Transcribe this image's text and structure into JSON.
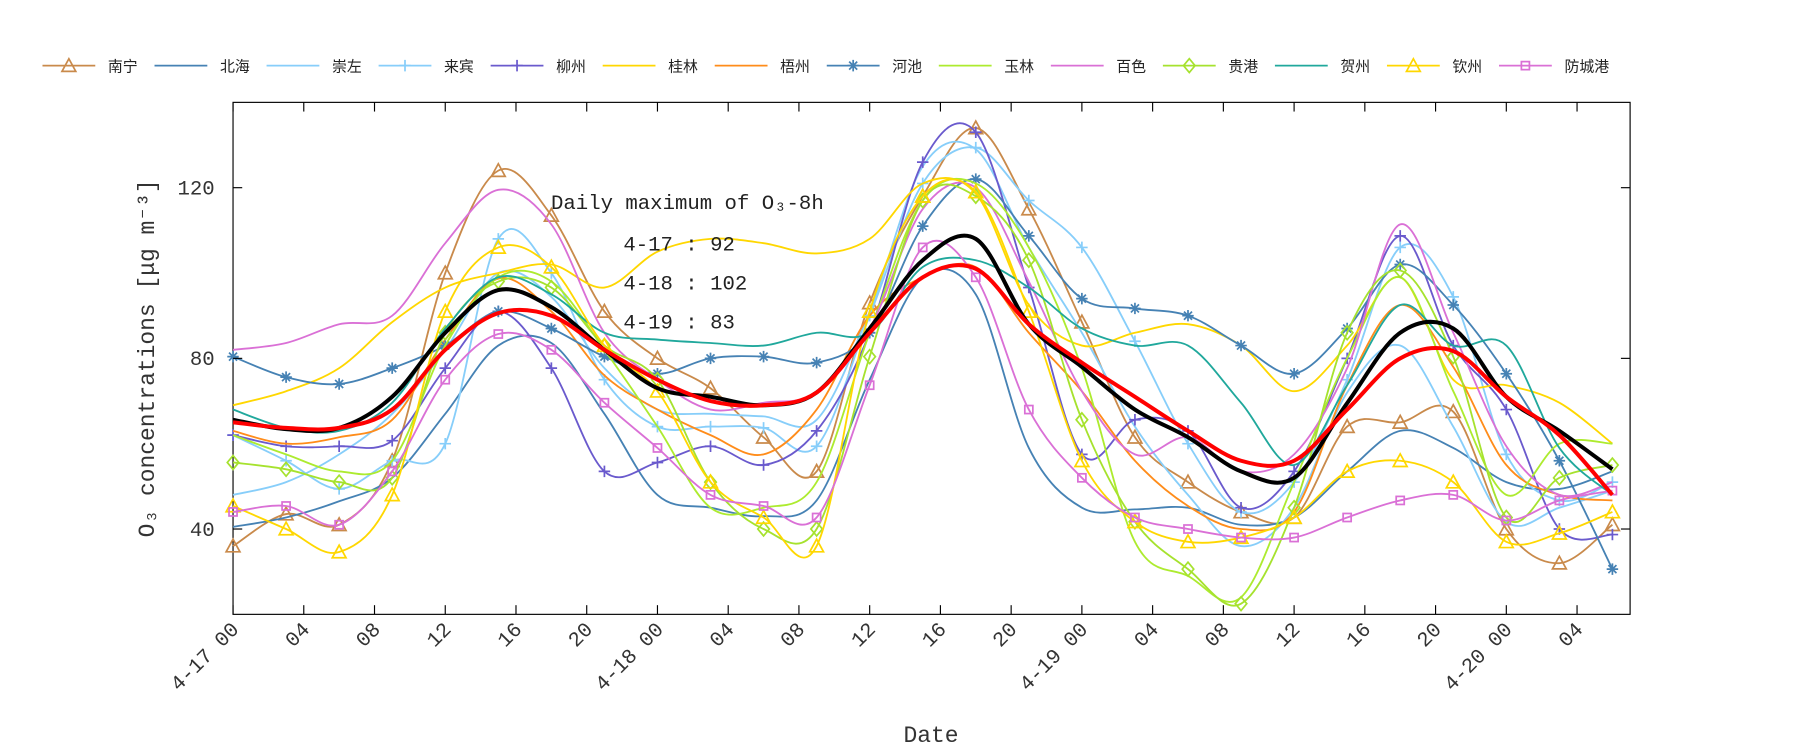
{
  "chart_data": {
    "type": "line",
    "title": "",
    "xlabel": "Date",
    "ylabel": "O₃ concentrations [μg m⁻³]",
    "xlim_hours_from_4-17_00": [
      0,
      79
    ],
    "ylim": [
      20,
      140
    ],
    "yticks": [
      40,
      80,
      120
    ],
    "xtick_labels": [
      "4-17 00",
      "04",
      "08",
      "12",
      "16",
      "20",
      "4-18 00",
      "04",
      "08",
      "12",
      "16",
      "20",
      "4-19 00",
      "04",
      "08",
      "12",
      "16",
      "20",
      "4-20 00",
      "04"
    ],
    "grid": false,
    "legend_position": "top",
    "x_time": [
      "4-17 00",
      "4-17 03",
      "4-17 06",
      "4-17 09",
      "4-17 12",
      "4-17 15",
      "4-17 18",
      "4-17 21",
      "4-18 00",
      "4-18 03",
      "4-18 06",
      "4-18 09",
      "4-18 12",
      "4-18 15",
      "4-18 18",
      "4-18 21",
      "4-19 00",
      "4-19 03",
      "4-19 06",
      "4-19 09",
      "4-19 12",
      "4-19 15",
      "4-19 18",
      "4-19 21",
      "4-20 00",
      "4-20 03",
      "4-20 06"
    ],
    "annotation": {
      "title": "Daily maximum of O₃-8h",
      "lines": [
        "4-17 : 92",
        "4-18 : 102",
        "4-19 : 83"
      ]
    },
    "series": [
      {
        "name": "南宁",
        "color": "#c98a4b",
        "marker": "triangle",
        "values": [
          36,
          43.5,
          41,
          56,
          100,
          124,
          113.5,
          91,
          80,
          73,
          61.5,
          53.5,
          93,
          118,
          134,
          115,
          88.5,
          61.5,
          51,
          44,
          42.7,
          64,
          65,
          67.5,
          40,
          32,
          41
        ]
      },
      {
        "name": "北海",
        "color": "#4682b4",
        "marker": "none",
        "values": [
          40.5,
          42.7,
          46.5,
          52,
          67,
          83,
          83.6,
          67,
          48,
          45,
          43,
          46.7,
          75,
          99,
          95,
          59,
          45,
          44.6,
          45,
          41,
          42.7,
          53.5,
          63,
          59,
          51,
          49.4,
          53.5
        ]
      },
      {
        "name": "崇左",
        "color": "#87cefa",
        "marker": "none",
        "values": [
          48,
          51,
          57.5,
          67,
          82,
          100,
          94.4,
          77.7,
          68,
          67,
          66.4,
          65.6,
          91,
          125,
          129,
          106,
          86,
          64,
          48,
          36,
          45,
          72,
          83,
          64,
          41.7,
          45,
          49
        ]
      },
      {
        "name": "来宾",
        "color": "#87cefa",
        "marker": "plus",
        "values": [
          62,
          56,
          49.4,
          56,
          60,
          108,
          100,
          75,
          64,
          64,
          63.7,
          59.4,
          90,
          121,
          129.4,
          117,
          106,
          84,
          60,
          44,
          51,
          75,
          106,
          94.4,
          57.5,
          46.7,
          51
        ]
      },
      {
        "name": "柳州",
        "color": "#6a5acd",
        "marker": "plus",
        "values": [
          62,
          59.4,
          59.4,
          60.7,
          77.7,
          91,
          77.7,
          53.5,
          55.6,
          59.4,
          55,
          63,
          86,
          126,
          133,
          96.6,
          57.5,
          65.6,
          63,
          45,
          53.5,
          80,
          108.7,
          83,
          68,
          40,
          38.7
        ]
      },
      {
        "name": "桂林",
        "color": "#ffd700",
        "marker": "none",
        "values": [
          69,
          72.3,
          77.7,
          88.5,
          96.6,
          100,
          102,
          96.6,
          105,
          108,
          107,
          104.6,
          108,
          121,
          118.6,
          92.5,
          83,
          86,
          88,
          83,
          72.3,
          83,
          99,
          75,
          73.7,
          69.6,
          60
        ]
      },
      {
        "name": "梧州",
        "color": "#ff8c1a",
        "marker": "none",
        "values": [
          63,
          60,
          61.5,
          65.6,
          84.4,
          98.7,
          91,
          76,
          68,
          62,
          57.5,
          68,
          90,
          99,
          101.4,
          86,
          72.3,
          56,
          45.4,
          40,
          44,
          73.7,
          92.5,
          78,
          55,
          48,
          46.7
        ]
      },
      {
        "name": "河池",
        "color": "#4682b4",
        "marker": "star",
        "values": [
          80.4,
          75.6,
          74,
          77.7,
          83,
          91,
          87,
          80.4,
          76.4,
          80,
          80.4,
          79,
          86,
          111,
          122,
          108.7,
          94,
          91.7,
          90,
          83,
          76.4,
          87,
          102,
          92.5,
          76.4,
          56,
          30.6
        ]
      },
      {
        "name": "玉林",
        "color": "#adeb2f",
        "marker": "none",
        "values": [
          62,
          57.5,
          53.5,
          56,
          83,
          99,
          98,
          82,
          64,
          45,
          45,
          51,
          86,
          117,
          121,
          106,
          77.7,
          37,
          29,
          24,
          51,
          80,
          99,
          72.3,
          48,
          60,
          60
        ]
      },
      {
        "name": "百色",
        "color": "#da70d6",
        "marker": "none",
        "values": [
          82,
          83.6,
          88,
          90,
          107,
          119.5,
          111.4,
          86,
          75,
          68,
          69.6,
          72,
          87,
          115,
          120,
          98,
          72.3,
          57.5,
          61.5,
          53.5,
          57.5,
          77.7,
          111.4,
          86,
          59.4,
          48,
          51
        ]
      },
      {
        "name": "贵港",
        "color": "#a6e22e",
        "marker": "diamond",
        "values": [
          55.6,
          54,
          51,
          52,
          86,
          98,
          96.6,
          83,
          75,
          51,
          40,
          40,
          80.4,
          117,
          118,
          103,
          65.6,
          41.7,
          30.6,
          22.5,
          45,
          86,
          100.6,
          80.4,
          42.7,
          52,
          55
        ]
      },
      {
        "name": "贺州",
        "color": "#20a89c",
        "marker": "none",
        "values": [
          68,
          63.7,
          63,
          69.6,
          87,
          99,
          95,
          86,
          84.4,
          83.6,
          83,
          86,
          86,
          101.4,
          103,
          96.6,
          87,
          83,
          83,
          69.6,
          55,
          73.7,
          92.5,
          83,
          83,
          59,
          48
        ]
      },
      {
        "name": "钦州",
        "color": "#ffd700",
        "marker": "triangle",
        "values": [
          45.4,
          40,
          34.6,
          48,
          91,
          106,
          101.4,
          83,
          72.3,
          51,
          42.7,
          36,
          91,
          118,
          119,
          91,
          56,
          41.7,
          37,
          38,
          42.7,
          53.5,
          56,
          51,
          37,
          39,
          44
        ]
      },
      {
        "name": "防城港",
        "color": "#da70d6",
        "marker": "square",
        "values": [
          44,
          45.4,
          41,
          53.5,
          75,
          85.7,
          82,
          69.6,
          59,
          48,
          45.4,
          42.7,
          73.7,
          106,
          99,
          68,
          52,
          42.7,
          40,
          38,
          38,
          42.7,
          46.7,
          48,
          42,
          46.7,
          49
        ]
      },
      {
        "color": "#000000",
        "marker": "none",
        "bold": true,
        "values": [
          65.6,
          63.4,
          63.7,
          71,
          86,
          96,
          92,
          82,
          73,
          71,
          69,
          72,
          87,
          103,
          108,
          88,
          78,
          68,
          61.5,
          53.5,
          52,
          69.5,
          86,
          87,
          71,
          63,
          54
        ]
      },
      {
        "color": "#ff0000",
        "marker": "none",
        "bold": true,
        "values": [
          65,
          63.7,
          63.7,
          68,
          82,
          90.6,
          90,
          82,
          75,
          70,
          69,
          72,
          86,
          99,
          101,
          88,
          79,
          71,
          63,
          56,
          56,
          68,
          80,
          81.7,
          71,
          62,
          48
        ]
      }
    ]
  }
}
